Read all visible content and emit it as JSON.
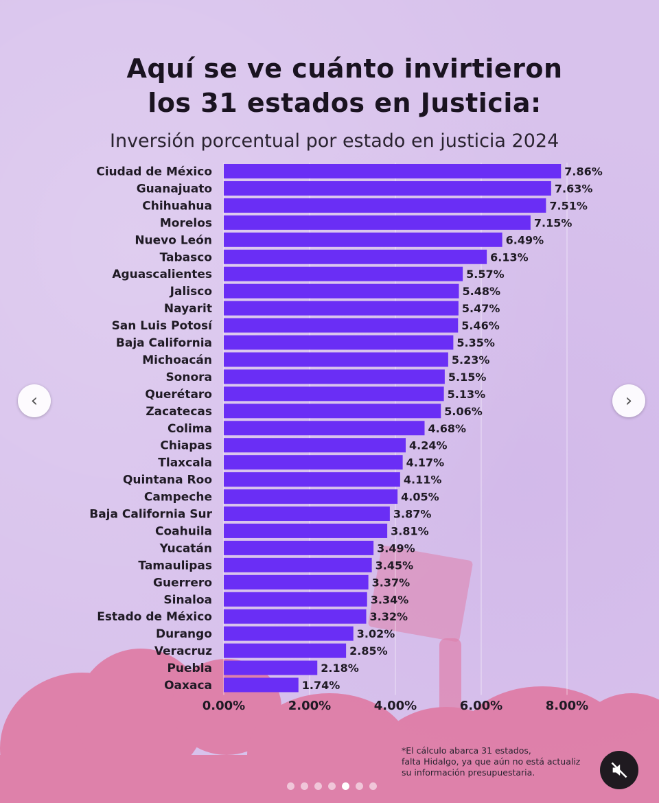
{
  "title_line1": "Aquí se ve cuánto invirtieron",
  "title_line2": "los 31 estados en Justicia:",
  "footnote": "*El cálculo abarca 31 estados,\nfalta Hidalgo, ya que aún no está actualiz\nsu información presupuestaria.",
  "colors": {
    "bar": "#6a2ef5",
    "background": "#d8c2ec",
    "crowd": "#e0759f"
  },
  "icons": {
    "prev": "chevron-left-icon",
    "next": "chevron-right-icon",
    "mute": "speaker-muted-icon"
  },
  "carousel": {
    "slide_count": 7,
    "active_index": 4
  },
  "chart_data": {
    "type": "bar",
    "orientation": "horizontal",
    "title": "Inversión porcentual por estado en justicia 2024",
    "categories": [
      "Ciudad de México",
      "Guanajuato",
      "Chihuahua",
      "Morelos",
      "Nuevo León",
      "Tabasco",
      "Aguascalientes",
      "Jalisco",
      "Nayarit",
      "San Luis Potosí",
      "Baja California",
      "Michoacán",
      "Sonora",
      "Querétaro",
      "Zacatecas",
      "Colima",
      "Chiapas",
      "Tlaxcala",
      "Quintana Roo",
      "Campeche",
      "Baja California Sur",
      "Coahuila",
      "Yucatán",
      "Tamaulipas",
      "Guerrero",
      "Sinaloa",
      "Estado de México",
      "Durango",
      "Veracruz",
      "Puebla",
      "Oaxaca"
    ],
    "values": [
      7.86,
      7.63,
      7.51,
      7.15,
      6.49,
      6.13,
      5.57,
      5.48,
      5.47,
      5.46,
      5.35,
      5.23,
      5.15,
      5.13,
      5.06,
      4.68,
      4.24,
      4.17,
      4.11,
      4.05,
      3.87,
      3.81,
      3.49,
      3.45,
      3.37,
      3.34,
      3.32,
      3.02,
      2.85,
      2.18,
      1.74
    ],
    "data_labels": [
      "7.86%",
      "7.63%",
      "7.51%",
      "7.15%",
      "6.49%",
      "6.13%",
      "5.57%",
      "5.48%",
      "5.47%",
      "5.46%",
      "5.35%",
      "5.23%",
      "5.15%",
      "5.13%",
      "5.06%",
      "4.68%",
      "4.24%",
      "4.17%",
      "4.11%",
      "4.05%",
      "3.87%",
      "3.81%",
      "3.49%",
      "3.45%",
      "3.37%",
      "3.34%",
      "3.32%",
      "3.02%",
      "2.85%",
      "2.18%",
      "1.74%"
    ],
    "x_ticks": [
      "0.00%",
      "2.00%",
      "4.00%",
      "6.00%",
      "8.00%"
    ],
    "xlim": [
      0,
      8
    ],
    "grid": true,
    "legend": "none"
  }
}
